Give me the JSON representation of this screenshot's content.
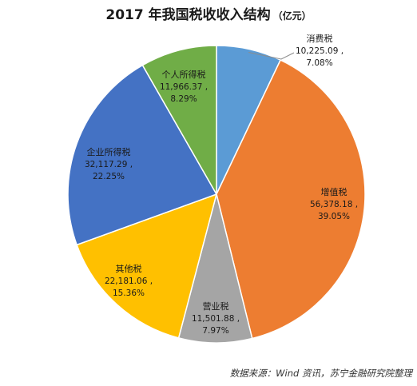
{
  "chart_data": {
    "type": "pie",
    "title": "2017 年我国税收收入结构",
    "unit": "（亿元）",
    "slices": [
      {
        "name": "消费税",
        "value": 10225.09,
        "value_label": "10,225.09 ,",
        "percent": 7.08,
        "percent_label": "7.08%",
        "color": "#5b9bd5"
      },
      {
        "name": "增值税",
        "value": 56378.18,
        "value_label": "56,378.18 ,",
        "percent": 39.05,
        "percent_label": "39.05%",
        "color": "#ed7d31"
      },
      {
        "name": "营业税",
        "value": 11501.88,
        "value_label": "11,501.88 ,",
        "percent": 7.97,
        "percent_label": "7.97%",
        "color": "#a5a5a5"
      },
      {
        "name": "其他税",
        "value": 22181.06,
        "value_label": "22,181.06 ,",
        "percent": 15.36,
        "percent_label": "15.36%",
        "color": "#ffc000"
      },
      {
        "name": "企业所得税",
        "value": 32117.29,
        "value_label": "32,117.29 ,",
        "percent": 22.25,
        "percent_label": "22.25%",
        "color": "#4472c4"
      },
      {
        "name": "个人所得税",
        "value": 11966.37,
        "value_label": "11,966.37 ,",
        "percent": 8.29,
        "percent_label": "8.29%",
        "color": "#70ad47"
      }
    ],
    "legend": "none",
    "source": "数据来源：Wind 资讯，苏宁金融研究院整理"
  }
}
